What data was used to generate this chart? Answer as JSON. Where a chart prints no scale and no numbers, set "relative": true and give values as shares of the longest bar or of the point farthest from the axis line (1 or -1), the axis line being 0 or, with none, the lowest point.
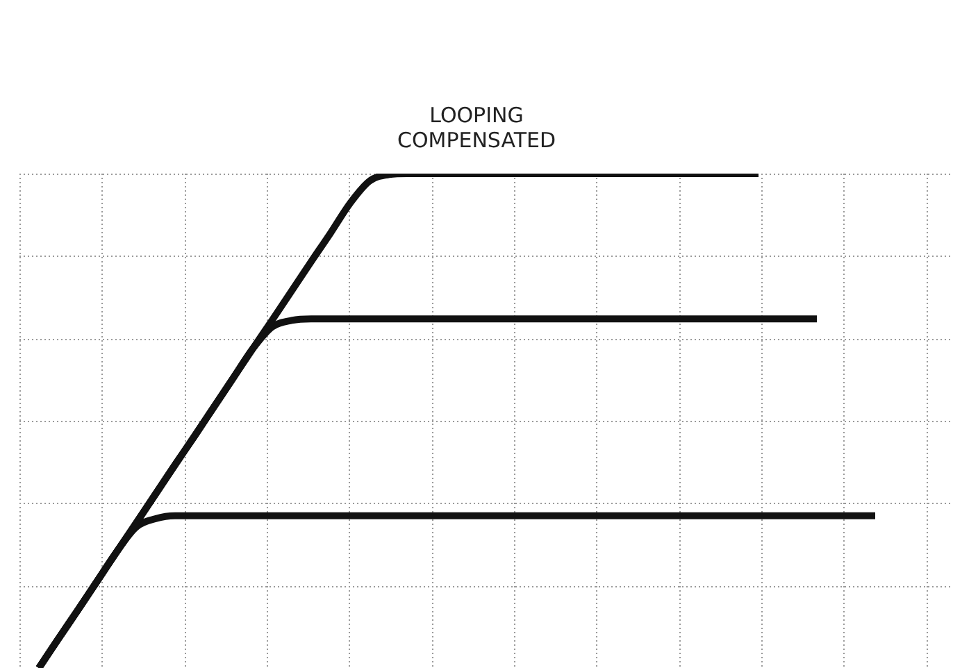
{
  "chart_data": {
    "type": "line",
    "title": "LOOPING COMPENSATED",
    "relative": true,
    "grid": true,
    "legend": false,
    "marker": "none",
    "line_style": "solid",
    "categories": [
      null,
      null,
      null,
      null,
      null,
      null,
      null,
      null,
      null,
      null,
      null,
      null,
      null,
      null,
      null,
      null,
      null,
      null,
      null,
      null,
      null,
      null,
      null,
      null,
      null,
      null,
      null,
      null,
      null,
      null,
      null,
      null,
      null,
      null,
      null,
      null,
      null,
      null,
      null,
      null,
      null,
      null,
      null,
      null,
      null,
      null,
      null,
      null,
      null,
      null
    ],
    "series": [
      {
        "color": "#111111",
        "values": [
          null,
          null,
          0,
          0.059,
          0.117,
          0.176,
          0.235,
          0.293,
          0.352,
          0.411,
          0.469,
          0.528,
          0.587,
          0.646,
          0.704,
          0.763,
          0.822,
          0.88,
          0.94,
          0.985,
          0.998,
          1,
          1,
          1,
          1,
          1,
          1,
          1,
          1,
          1,
          1,
          1,
          1,
          1,
          1,
          1,
          1,
          1,
          1,
          1,
          null,
          null,
          null,
          null,
          null,
          null,
          null,
          null,
          null,
          null
        ]
      },
      {
        "color": "#111111",
        "values": [
          null,
          null,
          0,
          0.059,
          0.117,
          0.176,
          0.235,
          0.293,
          0.352,
          0.411,
          0.469,
          0.528,
          0.587,
          0.646,
          0.69,
          0.703,
          0.706,
          0.706,
          0.706,
          0.706,
          0.706,
          0.706,
          0.706,
          0.706,
          0.706,
          0.706,
          0.706,
          0.706,
          0.706,
          0.706,
          0.706,
          0.706,
          0.706,
          0.706,
          0.706,
          0.706,
          0.706,
          0.706,
          0.706,
          0.706,
          0.706,
          0.706,
          0.706,
          null,
          null,
          null,
          null,
          null,
          null,
          null
        ]
      },
      {
        "color": "#111111",
        "values": [
          null,
          null,
          0,
          0.059,
          0.117,
          0.176,
          0.235,
          0.285,
          0.302,
          0.308,
          0.308,
          0.308,
          0.308,
          0.308,
          0.308,
          0.308,
          0.308,
          0.308,
          0.308,
          0.308,
          0.308,
          0.308,
          0.308,
          0.308,
          0.308,
          0.308,
          0.308,
          0.308,
          0.308,
          0.308,
          0.308,
          0.308,
          0.308,
          0.308,
          0.308,
          0.308,
          0.308,
          0.308,
          0.308,
          0.308,
          0.308,
          0.308,
          0.308,
          0.308,
          0.308,
          0.308,
          null,
          null,
          null,
          null
        ]
      }
    ]
  }
}
